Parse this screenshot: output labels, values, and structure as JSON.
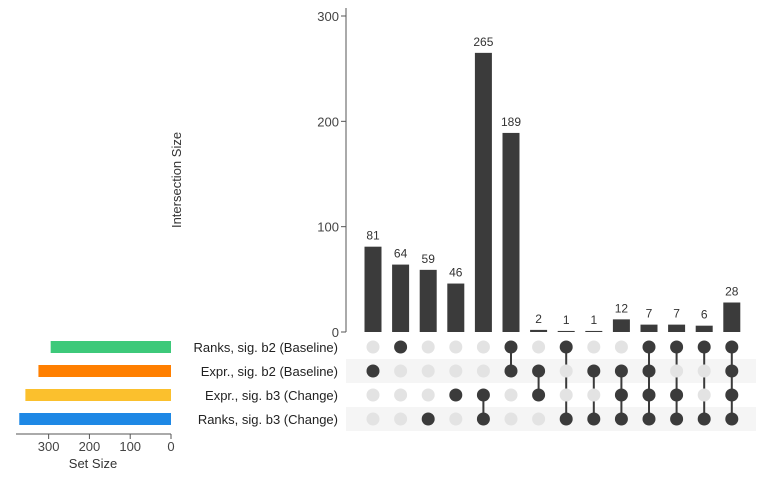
{
  "chart_data": {
    "type": "upset",
    "ylabel": "Intersection Size",
    "ylim": [
      0,
      300
    ],
    "y_ticks": [
      "0",
      "100",
      "200",
      "300"
    ],
    "set_size_label": "Set Size",
    "set_size_lim": [
      0,
      380
    ],
    "set_size_ticks": [
      "300",
      "200",
      "100",
      "0"
    ],
    "sets": [
      {
        "name": "Ranks, sig. b2 (Baseline)",
        "size": 295,
        "color": "#3DC97A"
      },
      {
        "name": "Expr., sig. b2 (Baseline)",
        "size": 325,
        "color": "#FF7F00"
      },
      {
        "name": "Expr., sig. b3 (Change)",
        "size": 357,
        "color": "#FBC02D"
      },
      {
        "name": "Ranks, sig. b3 (Change)",
        "size": 372,
        "color": "#1E88E5"
      }
    ],
    "intersections": [
      {
        "label": "81",
        "value": 81,
        "members": [
          1
        ]
      },
      {
        "label": "64",
        "value": 64,
        "members": [
          0
        ]
      },
      {
        "label": "59",
        "value": 59,
        "members": [
          3
        ]
      },
      {
        "label": "46",
        "value": 46,
        "members": [
          2
        ]
      },
      {
        "label": "265",
        "value": 265,
        "members": [
          2,
          3
        ]
      },
      {
        "label": "189",
        "value": 189,
        "members": [
          0,
          1
        ]
      },
      {
        "label": "2",
        "value": 2,
        "members": [
          1,
          2
        ]
      },
      {
        "label": "1",
        "value": 1,
        "members": [
          0,
          3
        ]
      },
      {
        "label": "1",
        "value": 1,
        "members": [
          1,
          3
        ]
      },
      {
        "label": "12",
        "value": 12,
        "members": [
          1,
          2,
          3
        ]
      },
      {
        "label": "7",
        "value": 7,
        "members": [
          0,
          1,
          2,
          3
        ]
      },
      {
        "label": "7",
        "value": 7,
        "members": [
          0,
          2,
          3
        ]
      },
      {
        "label": "6",
        "value": 6,
        "members": [
          0,
          3
        ]
      },
      {
        "label": "28",
        "value": 28,
        "members": [
          0,
          1,
          2,
          3
        ]
      }
    ],
    "bar_color": "#3b3b3b",
    "dot_active_color": "#3b3b3b",
    "dot_inactive_color": "#e3e3e3",
    "row_stripe_color": "#f5f5f5"
  }
}
